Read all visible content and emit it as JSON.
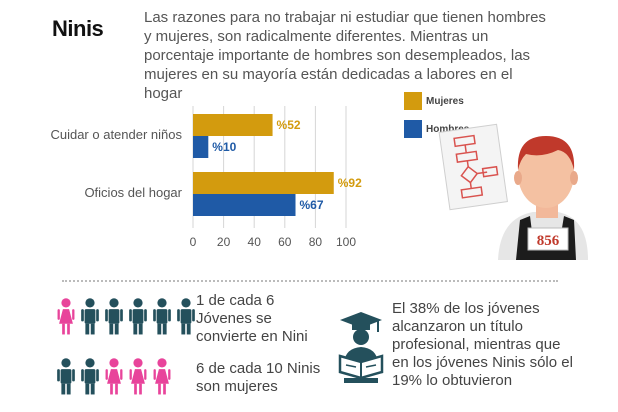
{
  "header": {
    "title": "Ninis",
    "intro": "Las razones para no trabajar ni estudiar que tienen hombres y mujeres, son radicalmente diferentes. Mientras un porcentaje importante de hombres son desempleados, las mujeres en su mayoría están dedicadas a labores en el hogar"
  },
  "colors": {
    "mujeres": "#D39B0E",
    "hombres": "#1F5AA6",
    "pink": "#E8449B",
    "teal": "#24505C"
  },
  "chart_data": {
    "type": "bar",
    "orientation": "horizontal",
    "categories": [
      "Cuidar o atender niños",
      "Oficios del hogar"
    ],
    "series": [
      {
        "name": "Mujeres",
        "values": [
          52,
          92
        ],
        "labels": [
          "%52",
          "%92"
        ]
      },
      {
        "name": "Hombres",
        "values": [
          10,
          67
        ],
        "labels": [
          "%10",
          "%67"
        ]
      }
    ],
    "xlim": [
      0,
      100
    ],
    "ticks": [
      "0",
      "20",
      "40",
      "60",
      "80",
      "100"
    ],
    "tick_values": [
      0,
      20,
      40,
      60,
      80,
      100
    ],
    "legend": [
      "Mujeres",
      "Hombres"
    ]
  },
  "figure": {
    "bib_number": "856"
  },
  "stats": {
    "stat1": {
      "line1": "1 de cada 6",
      "line2": "Jóvenes se",
      "line3": "convierte en Nini"
    },
    "stat2": {
      "line1": "6 de cada 10 Ninis",
      "line2": "son mujeres"
    },
    "stat3": {
      "line1": "El 38% de los jóvenes",
      "line2": "alcanzaron un título",
      "line3": "profesional, mientras que",
      "line4": "en los jóvenes Ninis sólo el",
      "line5": "19% lo obtuvieron"
    }
  },
  "icons": {
    "row1": [
      "female",
      "male",
      "male",
      "male",
      "male",
      "male"
    ],
    "row2": [
      "male",
      "male",
      "female",
      "female",
      "female"
    ]
  }
}
